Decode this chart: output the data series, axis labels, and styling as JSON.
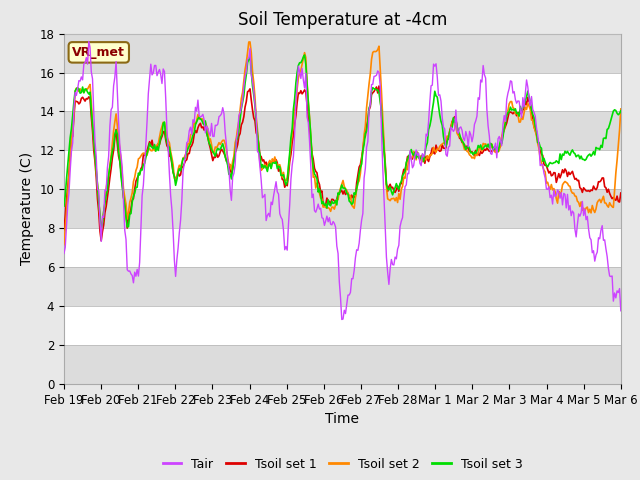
{
  "title": "Soil Temperature at -4cm",
  "xlabel": "Time",
  "ylabel": "Temperature (C)",
  "ylim": [
    0,
    18
  ],
  "yticks": [
    0,
    2,
    4,
    6,
    8,
    10,
    12,
    14,
    16,
    18
  ],
  "x_tick_labels": [
    "Feb 19",
    "Feb 20",
    "Feb 21",
    "Feb 22",
    "Feb 23",
    "Feb 24",
    "Feb 25",
    "Feb 26",
    "Feb 27",
    "Feb 28",
    "Mar 1",
    "Mar 2",
    "Mar 3",
    "Mar 4",
    "Mar 5",
    "Mar 6"
  ],
  "annotation_text": "VR_met",
  "annotation_color": "#8B0000",
  "annotation_bg": "#FFFFCC",
  "annotation_edge": "#8B6914",
  "fig_bg": "#E8E8E8",
  "plot_bg": "#FFFFFF",
  "colors": {
    "Tair": "#CC44FF",
    "Tsoil1": "#DD0000",
    "Tsoil2": "#FF8800",
    "Tsoil3": "#00DD00"
  },
  "band_color": "#DCDCDC",
  "legend_labels": [
    "Tair",
    "Tsoil set 1",
    "Tsoil set 2",
    "Tsoil set 3"
  ],
  "title_fontsize": 12,
  "label_fontsize": 10,
  "tick_fontsize": 8.5
}
